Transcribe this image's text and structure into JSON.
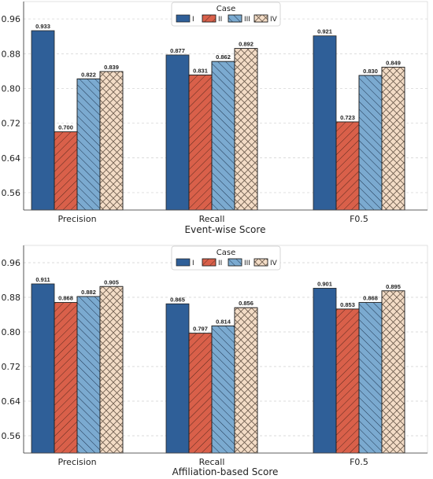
{
  "chart_data": [
    {
      "type": "bar",
      "categories": [
        "Precision",
        "Recall",
        "F0.5"
      ],
      "series": [
        {
          "name": "I",
          "values": [
            0.933,
            0.877,
            0.921
          ],
          "color": "#2f5f98",
          "hatch": "none"
        },
        {
          "name": "II",
          "values": [
            0.7,
            0.831,
            0.723
          ],
          "color": "#d9604a",
          "hatch": "diag-right"
        },
        {
          "name": "III",
          "values": [
            0.822,
            0.862,
            0.83
          ],
          "color": "#7baad0",
          "hatch": "diag-left"
        },
        {
          "name": "IV",
          "values": [
            0.839,
            0.892,
            0.849
          ],
          "color": "#f3dcc6",
          "hatch": "cross"
        }
      ],
      "xlabel": "Event-wise Score",
      "ylim": [
        0.52,
        1.0
      ],
      "yticks": [
        0.56,
        0.64,
        0.72,
        0.8,
        0.88,
        0.96
      ],
      "ytick_labels": [
        "0.56",
        "0.64",
        "0.72",
        "0.80",
        "0.88",
        "0.96"
      ],
      "data_labels": [
        [
          "0.933",
          "0.877",
          "0.921"
        ],
        [
          "0.700",
          "0.831",
          "0.723"
        ],
        [
          "0.822",
          "0.862",
          "0.830"
        ],
        [
          "0.839",
          "0.892",
          "0.849"
        ]
      ],
      "legend_title": "Case",
      "legend_position": "top-center",
      "grid": true
    },
    {
      "type": "bar",
      "categories": [
        "Precision",
        "Recall",
        "F0.5"
      ],
      "series": [
        {
          "name": "I",
          "values": [
            0.911,
            0.865,
            0.901
          ],
          "color": "#2f5f98",
          "hatch": "none"
        },
        {
          "name": "II",
          "values": [
            0.868,
            0.797,
            0.853
          ],
          "color": "#d9604a",
          "hatch": "diag-right"
        },
        {
          "name": "III",
          "values": [
            0.882,
            0.814,
            0.868
          ],
          "color": "#7baad0",
          "hatch": "diag-left"
        },
        {
          "name": "IV",
          "values": [
            0.905,
            0.856,
            0.895
          ],
          "color": "#f3dcc6",
          "hatch": "cross"
        }
      ],
      "xlabel": "Affiliation-based Score",
      "ylim": [
        0.52,
        1.0
      ],
      "yticks": [
        0.56,
        0.64,
        0.72,
        0.8,
        0.88,
        0.96
      ],
      "ytick_labels": [
        "0.56",
        "0.64",
        "0.72",
        "0.80",
        "0.88",
        "0.96"
      ],
      "data_labels": [
        [
          "0.911",
          "0.865",
          "0.901"
        ],
        [
          "0.868",
          "0.797",
          "0.853"
        ],
        [
          "0.882",
          "0.814",
          "0.868"
        ],
        [
          "0.905",
          "0.856",
          "0.895"
        ]
      ],
      "legend_title": "Case",
      "legend_position": "top-center",
      "grid": true
    }
  ]
}
